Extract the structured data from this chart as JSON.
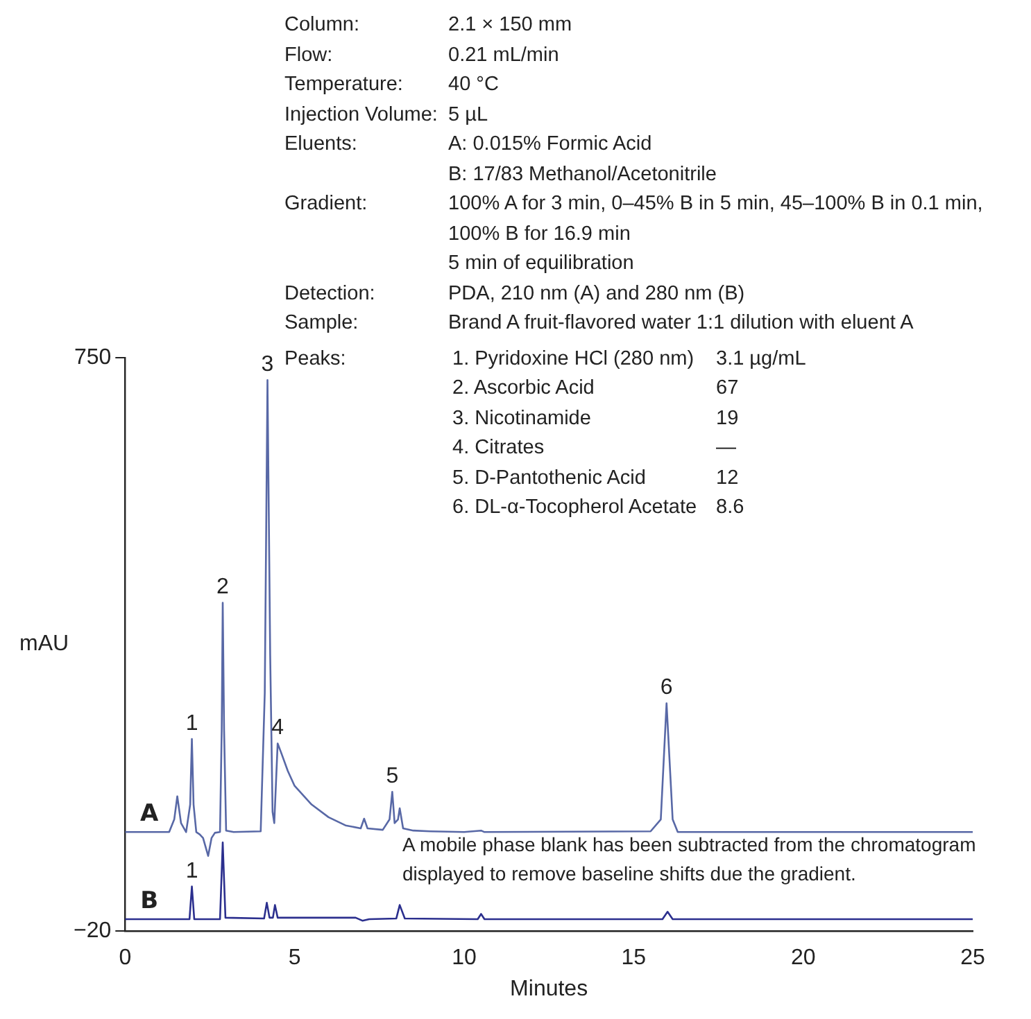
{
  "chart_data": {
    "type": "line",
    "xlabel": "Minutes",
    "ylabel": "mAU",
    "xlim": [
      0,
      25
    ],
    "xticks": [
      0,
      5,
      10,
      15,
      20,
      25
    ],
    "ylim": [
      -20,
      750
    ],
    "yticks": [
      -20,
      750
    ],
    "grid": false,
    "legend": false,
    "marker": "none",
    "line_style": "solid",
    "series": [
      {
        "name": "A",
        "color": "#5868a6",
        "x": [
          0,
          1.3,
          1.45,
          1.54,
          1.65,
          1.8,
          1.92,
          1.97,
          2.02,
          2.1,
          2.2,
          2.3,
          2.45,
          2.55,
          2.65,
          2.8,
          2.85,
          2.88,
          2.92,
          2.98,
          3.2,
          4.0,
          4.12,
          4.2,
          4.28,
          4.35,
          4.4,
          4.5,
          4.6,
          4.8,
          5.0,
          5.5,
          6.0,
          6.5,
          6.95,
          7.05,
          7.15,
          7.6,
          7.8,
          7.88,
          7.95,
          8.05,
          8.1,
          8.2,
          8.5,
          9,
          10,
          10.5,
          10.6,
          15.5,
          15.8,
          15.97,
          16.15,
          16.3,
          25
        ],
        "values": [
          113,
          113,
          130,
          161,
          125,
          113,
          150,
          238,
          150,
          113,
          110,
          105,
          81,
          105,
          112,
          113,
          250,
          421,
          250,
          115,
          113,
          114,
          300,
          720,
          350,
          140,
          125,
          232,
          220,
          195,
          175,
          150,
          133,
          122,
          118,
          131,
          118,
          116,
          130,
          167,
          125,
          130,
          145,
          118,
          115,
          114,
          113,
          115,
          113,
          114,
          130,
          286,
          130,
          113,
          113
        ]
      },
      {
        "name": "B",
        "color": "#2b2f8e",
        "x": [
          0,
          1.9,
          1.97,
          2.04,
          2.8,
          2.88,
          2.96,
          4.1,
          4.18,
          4.26,
          4.36,
          4.42,
          4.5,
          6.8,
          7.0,
          7.2,
          8.0,
          8.1,
          8.25,
          10.4,
          10.5,
          10.6,
          15.85,
          16.0,
          16.15,
          25
        ],
        "values": [
          -4,
          -4,
          40,
          -4,
          -4,
          99,
          -2,
          -3,
          18,
          -2,
          -2,
          15,
          -2,
          -2,
          -6,
          -4,
          -3,
          15,
          -3,
          -4,
          3,
          -4,
          -4,
          6,
          -4,
          -4
        ]
      }
    ],
    "annotations": [
      "Column:\t2.1 × 150 mm",
      "Flow:\t0.21 mL/min",
      "Temperature:\t40 °C",
      "Injection Volume:\t5 µL",
      "Eluents:\tA: 0.015% Formic Acid",
      "\tB: 17/83 Methanol/Acetonitrile",
      "Gradient:\t100% A for 3 min, 0–45% B in 5 min, 45–100% B in 0.1 min, 100% B for 16.9 min",
      "\t5 min of equilibration",
      "Detection:\tPDA, 210 nm (A) and 280 nm (B)",
      "Sample:\tBrand A fruit-flavored water 1:1 dilution with eluent A",
      "Peaks:\t1. Pyridoxine HCl (280 nm)\t3.1 µg/mL",
      "\t2. Ascorbic Acid\t67",
      "\t3. Nicotinamide\t19",
      "\t4. Citrates\t—",
      "\t5. D-Pantothenic Acid\t12",
      "\t6. DL-α-Tocopherol Acetate\t8.6",
      "A mobile phase blank has been subtracted from the chromatogram displayed to remove baseline shifts due the gradient.",
      {
        "text": "1",
        "x": 1.97,
        "y": 238
      },
      {
        "text": "2",
        "x": 2.88,
        "y": 421
      },
      {
        "text": "3",
        "x": 4.2,
        "y": 720
      },
      {
        "text": "4",
        "x": 4.5,
        "y": 232
      },
      {
        "text": "5",
        "x": 7.88,
        "y": 167
      },
      {
        "text": "6",
        "x": 15.97,
        "y": 286
      },
      {
        "text": "1",
        "x": 1.97,
        "y": 40
      }
    ]
  }
}
